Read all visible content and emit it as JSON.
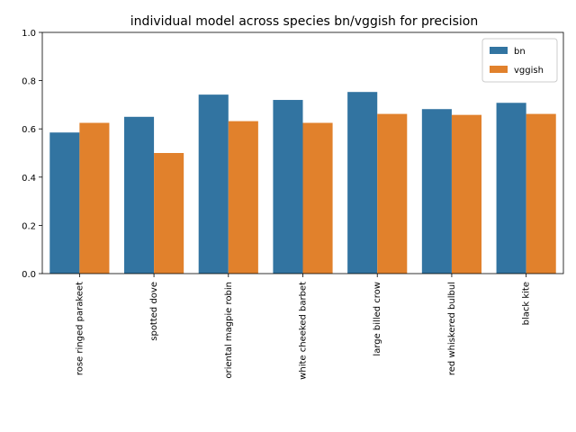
{
  "chart_data": {
    "type": "bar",
    "title": "individual model across species bn/vggish for precision",
    "xlabel": "",
    "ylabel": "",
    "categories": [
      "rose ringed parakeet",
      "spotted dove",
      "oriental magpie robin",
      "white cheeked barbet",
      "large billed crow",
      "red whiskered bulbul",
      "black kite"
    ],
    "series": [
      {
        "name": "bn",
        "color": "#3274a1",
        "values": [
          0.585,
          0.65,
          0.742,
          0.72,
          0.753,
          0.682,
          0.708
        ]
      },
      {
        "name": "vggish",
        "color": "#e1812c",
        "values": [
          0.625,
          0.5,
          0.632,
          0.625,
          0.662,
          0.658,
          0.662
        ]
      }
    ],
    "ylim": [
      0,
      1.0
    ],
    "yticks": [
      "0.0",
      "0.2",
      "0.4",
      "0.6",
      "0.8",
      "1.0"
    ],
    "grid": false,
    "legend_position": "top-right"
  }
}
